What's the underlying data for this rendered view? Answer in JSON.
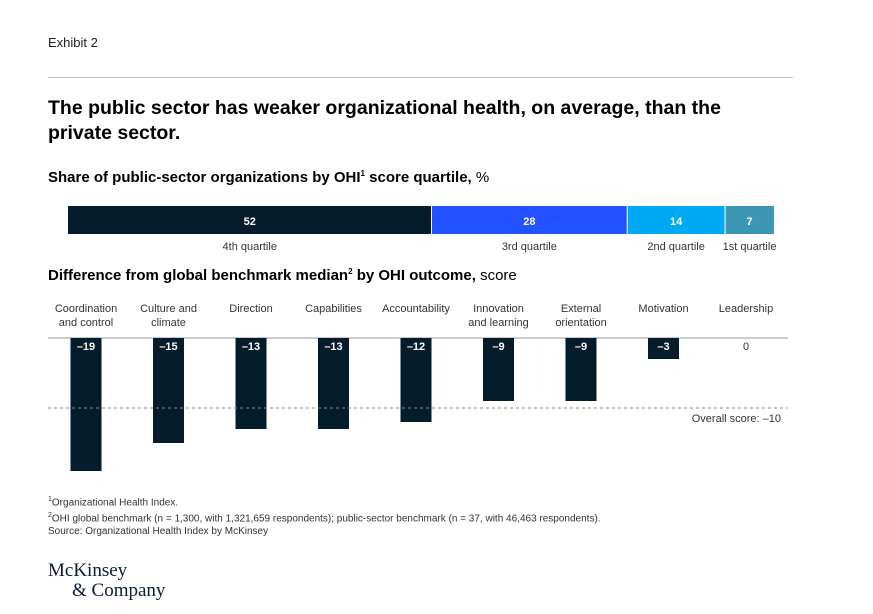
{
  "header": {
    "exhibit_label": "Exhibit 2",
    "title": "The public sector has weaker organizational health, on average, than the private sector."
  },
  "chart_data": [
    {
      "type": "bar",
      "orientation": "horizontal-stacked",
      "title": "Share of public-sector organizations by OHI",
      "title_sup": "1",
      "title_rest": " score quartile,",
      "unit": "%",
      "categories": [
        "4th quartile",
        "3rd quartile",
        "2nd quartile",
        "1st quartile"
      ],
      "values": [
        52,
        28,
        14,
        7
      ],
      "colors": [
        "#051c2c",
        "#2251ff",
        "#00a9f4",
        "#3c96b4"
      ]
    },
    {
      "type": "bar",
      "title": "Difference from global benchmark median",
      "title_sup": "2",
      "title_rest": " by OHI outcome,",
      "unit": "score",
      "categories": [
        [
          "Coordination",
          "and control"
        ],
        [
          "Culture and",
          "climate"
        ],
        [
          "Direction"
        ],
        [
          "Capabilities"
        ],
        [
          "Accountability"
        ],
        [
          "Innovation",
          "and learning"
        ],
        [
          "External",
          "orientation"
        ],
        [
          "Motivation"
        ],
        [
          "Leadership"
        ]
      ],
      "values": [
        -19,
        -15,
        -13,
        -13,
        -12,
        -9,
        -9,
        -3,
        0
      ],
      "value_labels": [
        "–19",
        "–15",
        "–13",
        "–13",
        "–12",
        "–9",
        "–9",
        "–3",
        "0"
      ],
      "reference_line": {
        "value": -10,
        "label": "Overall score: –10"
      },
      "bar_color": "#051c2c"
    }
  ],
  "footnotes": {
    "note1_mark": "1",
    "note1": "Organizational Health Index.",
    "note2_mark": "2",
    "note2": "OHI global benchmark (n = 1,300, with 1,321,659 respondents); public-sector benchmark (n = 37, with 46,463 respondents).",
    "source": "Source: Organizational Health Index by McKinsey"
  },
  "logo": {
    "line1": "McKinsey",
    "line2": "& Company"
  }
}
